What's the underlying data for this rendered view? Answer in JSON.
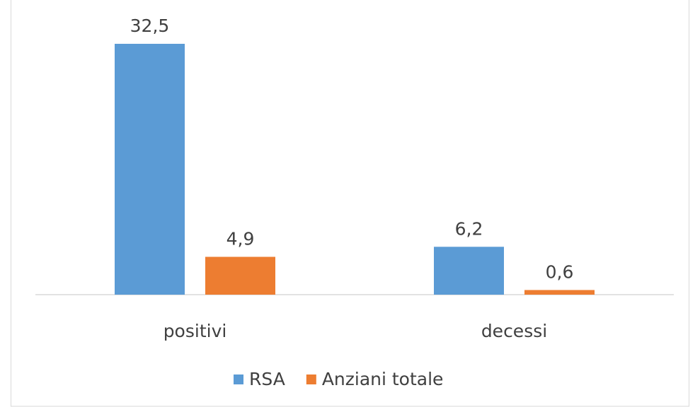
{
  "chart_data": {
    "type": "bar",
    "categories": [
      "positivi",
      "decessi"
    ],
    "series": [
      {
        "name": "RSA",
        "color": "#5b9bd5",
        "values": [
          32.5,
          6.2
        ],
        "value_labels": [
          "32,5",
          "6,2"
        ]
      },
      {
        "name": "Anziani totale",
        "color": "#ed7d31",
        "values": [
          4.9,
          0.6
        ],
        "value_labels": [
          "4,9",
          "0,6"
        ]
      }
    ],
    "legend": "bottom"
  }
}
